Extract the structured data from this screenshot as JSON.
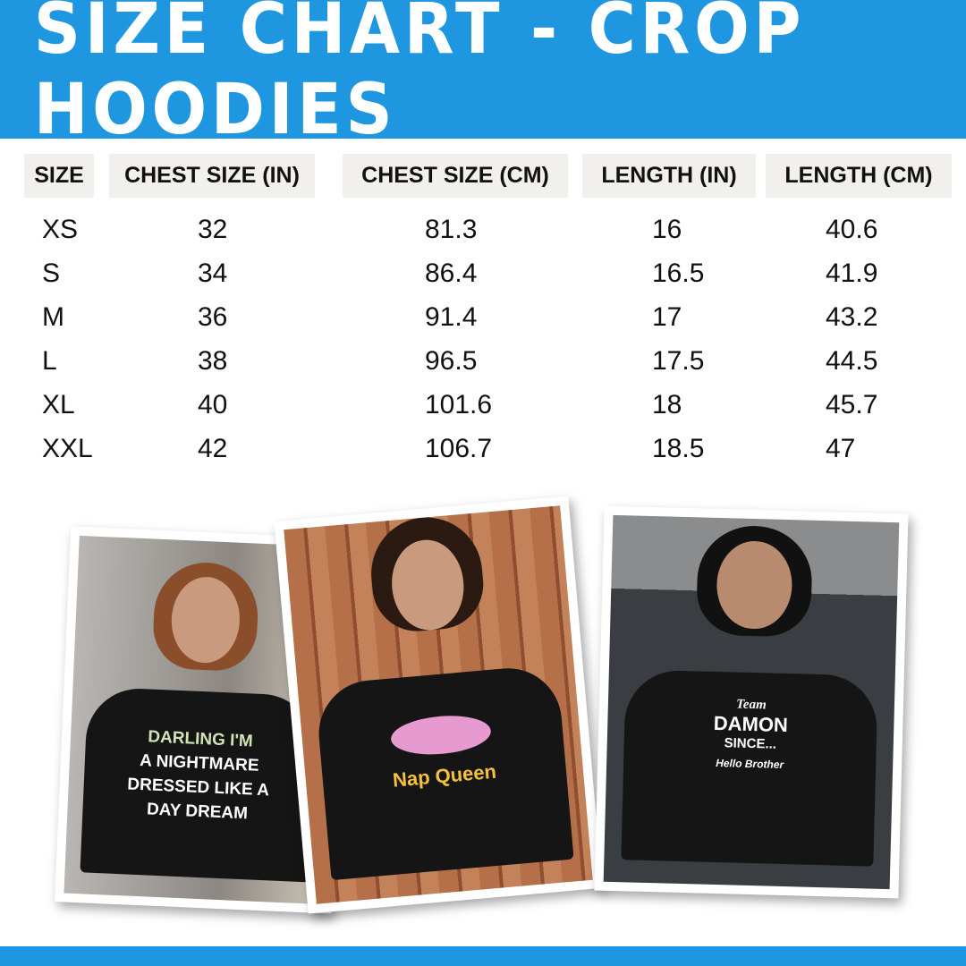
{
  "title": "SIZE CHART - CROP HOODIES",
  "colors": {
    "banner": "#1f97e0",
    "header_cell": "#f1f0ec"
  },
  "table": {
    "headers": [
      "SIZE",
      "CHEST SIZE (IN)",
      "CHEST SIZE (CM)",
      "LENGTH (IN)",
      "LENGTH (CM)"
    ],
    "rows": [
      [
        "XS",
        "32",
        "81.3",
        "16",
        "40.6"
      ],
      [
        "S",
        "34",
        "86.4",
        "16.5",
        "41.9"
      ],
      [
        "M",
        "36",
        "91.4",
        "17",
        "43.2"
      ],
      [
        "L",
        "38",
        "96.5",
        "17.5",
        "44.5"
      ],
      [
        "XL",
        "40",
        "101.6",
        "18",
        "45.7"
      ],
      [
        "XXL",
        "42",
        "106.7",
        "18.5",
        "47"
      ]
    ]
  },
  "photos": [
    {
      "print_lines": [
        "DARLING I'M",
        "A NIGHTMARE",
        "DRESSED LIKE A",
        "DAY DREAM"
      ]
    },
    {
      "print_lines": [
        "Nap Queen"
      ]
    },
    {
      "print_lines": [
        "Team",
        "DAMON",
        "SINCE...",
        "Hello Brother"
      ]
    }
  ]
}
